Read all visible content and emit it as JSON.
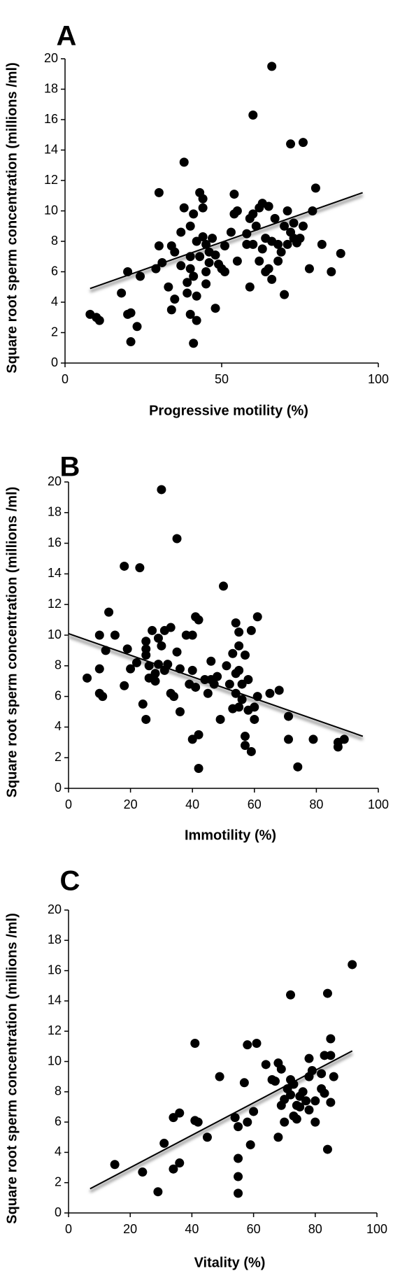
{
  "chart_data": [
    {
      "type": "scatter",
      "title": "A",
      "x_label": "Progressive motility (%)",
      "y_label": "Square root sperm concentration (millions /ml)",
      "xlim": [
        0,
        100
      ],
      "ylim": [
        0,
        20
      ],
      "xticks": [
        0,
        50,
        100
      ],
      "yticks": [
        0,
        2,
        4,
        6,
        8,
        10,
        12,
        14,
        16,
        18,
        20
      ],
      "color": "#000000",
      "trendline": {
        "x": [
          8,
          95
        ],
        "y": [
          4.9,
          11.2
        ]
      },
      "x": [
        8,
        10,
        11,
        18,
        20,
        20,
        21,
        21,
        23,
        24,
        30,
        29,
        30,
        31,
        33,
        34,
        34,
        35,
        35,
        37,
        37,
        38,
        38,
        39,
        39,
        40,
        40,
        40,
        40,
        41,
        41,
        41,
        42,
        42,
        42,
        43,
        43,
        44,
        44,
        44,
        45,
        45,
        45,
        46,
        46,
        47,
        48,
        48,
        49,
        50,
        51,
        51,
        53,
        54,
        54,
        55,
        55,
        58,
        58,
        59,
        59,
        60,
        60,
        60,
        61,
        62,
        62,
        63,
        63,
        64,
        64,
        65,
        65,
        66,
        66,
        66,
        67,
        68,
        68,
        69,
        70,
        70,
        71,
        71,
        72,
        72,
        73,
        73,
        74,
        75,
        76,
        76,
        78,
        79,
        80,
        82,
        85,
        88
      ],
      "values": [
        3.2,
        3,
        2.8,
        4.6,
        6,
        3.2,
        1.4,
        3.3,
        2.4,
        5.7,
        11.2,
        6.2,
        7.7,
        6.6,
        5,
        3.5,
        7.7,
        4.2,
        7.3,
        6.4,
        8.6,
        13.2,
        10.2,
        5.3,
        4.6,
        3.2,
        6.2,
        7,
        9,
        1.3,
        9.8,
        5.7,
        2.8,
        8,
        4.4,
        11.2,
        7,
        10.8,
        10.2,
        8.3,
        6,
        5.2,
        7.8,
        7.3,
        6.6,
        8.2,
        3.6,
        7.1,
        6.5,
        6.2,
        6,
        7.7,
        8.6,
        9.8,
        11.1,
        10,
        6.7,
        7.8,
        8.5,
        9.5,
        5,
        16.3,
        9.8,
        7.8,
        9,
        10.2,
        6.7,
        10.5,
        7.5,
        6,
        8.2,
        10.3,
        6.2,
        19.5,
        5.5,
        8,
        9.5,
        7.8,
        6.7,
        7.3,
        9,
        4.5,
        10,
        7.8,
        14.4,
        8.6,
        8.2,
        9.2,
        7.9,
        8.2,
        14.5,
        9,
        6.2,
        10,
        11.5,
        7.8,
        6,
        7.2
      ]
    },
    {
      "type": "scatter",
      "title": "B",
      "x_label": "Immotility (%)",
      "y_label": "Square root sperm concentration (millions /ml)",
      "xlim": [
        0,
        100
      ],
      "ylim": [
        0,
        20
      ],
      "xticks": [
        0,
        20,
        40,
        60,
        80,
        100
      ],
      "yticks": [
        0,
        2,
        4,
        6,
        8,
        10,
        12,
        14,
        16,
        18,
        20
      ],
      "color": "#000000",
      "trendline": {
        "x": [
          0,
          95
        ],
        "y": [
          10.1,
          3.4
        ]
      },
      "x": [
        6,
        10,
        10,
        10,
        11,
        12,
        13,
        15,
        18,
        18,
        19,
        20,
        22,
        23,
        24,
        25,
        25,
        25,
        25,
        26,
        26,
        27,
        28,
        28,
        29,
        29,
        30,
        30,
        31,
        31,
        32,
        33,
        33,
        34,
        35,
        35,
        36,
        36,
        38,
        39,
        40,
        40,
        40,
        41,
        41,
        42,
        42,
        42,
        44,
        45,
        46,
        46,
        47,
        48,
        49,
        50,
        51,
        52,
        53,
        53,
        54,
        54,
        54,
        55,
        55,
        55,
        55,
        56,
        56,
        57,
        57,
        57,
        58,
        58,
        59,
        59,
        60,
        60,
        61,
        61,
        65,
        68,
        71,
        71,
        74,
        79,
        87,
        87,
        89
      ],
      "values": [
        7.2,
        7.8,
        10,
        6.2,
        6,
        9,
        11.5,
        10,
        14.5,
        6.7,
        9.1,
        7.8,
        8.2,
        14.4,
        5.5,
        4.5,
        9.6,
        9.1,
        8.7,
        8,
        7.2,
        10.3,
        7.5,
        7,
        9.8,
        8.1,
        19.5,
        9.3,
        10.3,
        7.7,
        8.1,
        6.2,
        10.5,
        6,
        16.3,
        8.9,
        5,
        7.8,
        10,
        6.8,
        10,
        7.7,
        3.2,
        6.6,
        11.2,
        11,
        3.5,
        1.3,
        7.1,
        6.2,
        7.1,
        8.3,
        6.8,
        7.3,
        4.5,
        13.2,
        8,
        6.8,
        5.2,
        8.8,
        10.8,
        7.5,
        6.2,
        9.3,
        7.7,
        5.3,
        10.2,
        6.8,
        5.8,
        8.7,
        2.8,
        3.4,
        7.1,
        5.1,
        10.3,
        2.4,
        4.5,
        5.3,
        11.2,
        6,
        6.2,
        6.4,
        4.7,
        3.2,
        1.4,
        3.2,
        3,
        2.7,
        3.2
      ]
    },
    {
      "type": "scatter",
      "title": "C",
      "x_label": "Vitality  (%)",
      "y_label": "Square root sperm concentration (millions /ml)",
      "xlim": [
        0,
        100
      ],
      "ylim": [
        0,
        20
      ],
      "xticks": [
        0,
        20,
        40,
        60,
        80,
        100
      ],
      "yticks": [
        0,
        2,
        4,
        6,
        8,
        10,
        12,
        14,
        16,
        18,
        20
      ],
      "color": "#000000",
      "trendline": {
        "x": [
          7,
          92
        ],
        "y": [
          1.6,
          10.7
        ]
      },
      "x": [
        15,
        24,
        29,
        31,
        34,
        34,
        36,
        36,
        41,
        41,
        42,
        45,
        49,
        54,
        55,
        55,
        55,
        55,
        57,
        58,
        58,
        59,
        60,
        61,
        64,
        66,
        67,
        68,
        68,
        69,
        69,
        70,
        70,
        71,
        72,
        72,
        72,
        73,
        73,
        74,
        74,
        75,
        75,
        76,
        77,
        78,
        78,
        78,
        79,
        80,
        80,
        82,
        82,
        83,
        83,
        84,
        84,
        85,
        85,
        85,
        86,
        92
      ],
      "values": [
        3.2,
        2.7,
        1.4,
        4.6,
        6.3,
        2.9,
        6.6,
        3.3,
        11.2,
        6.1,
        6,
        5,
        9,
        6.3,
        5.7,
        3.6,
        2.4,
        1.3,
        8.6,
        11.1,
        6,
        4.5,
        6.7,
        11.2,
        9.8,
        8.8,
        8.7,
        9.9,
        5,
        9.5,
        7.1,
        7.5,
        6,
        8.2,
        14.4,
        8.8,
        7.8,
        6.4,
        8.5,
        6.2,
        7.1,
        7.7,
        7,
        8,
        7.4,
        10.2,
        6.8,
        9,
        9.4,
        6,
        7.4,
        8.2,
        9.2,
        10.4,
        7.9,
        14.5,
        4.2,
        7.3,
        11.5,
        10.4,
        9,
        16.4
      ]
    }
  ]
}
